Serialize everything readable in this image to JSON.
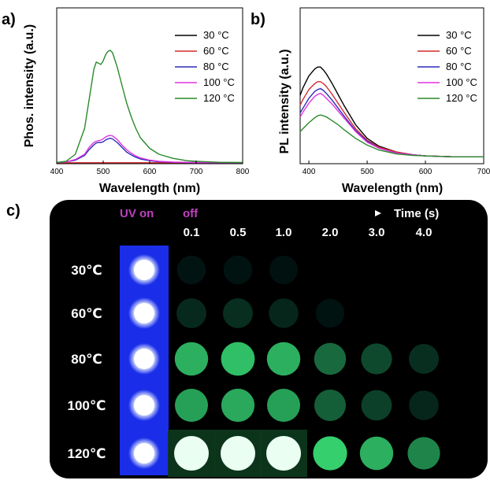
{
  "panel_labels": {
    "a": "a)",
    "b": "b)",
    "c": "c)"
  },
  "colors": {
    "30 °C": "#000000",
    "60 °C": "#d42a2a",
    "80 °C": "#2b2bb8",
    "100 °C": "#e033e0",
    "120 °C": "#2a8a2a"
  },
  "chart_data": [
    {
      "type": "line",
      "panel": "a",
      "xlabel": "Wavelength (nm)",
      "ylabel": "Phos. intensity (a.u.)",
      "xlim": [
        400,
        800
      ],
      "xticks": [
        "400",
        "500",
        "600",
        "700",
        "800"
      ],
      "yticks_visible": false,
      "legend": "top-right",
      "x": [
        400,
        420,
        440,
        460,
        470,
        480,
        485,
        490,
        495,
        500,
        505,
        510,
        515,
        520,
        530,
        540,
        550,
        560,
        570,
        580,
        600,
        620,
        650,
        680,
        700,
        750,
        800
      ],
      "series": [
        {
          "name": "30 °C",
          "values": [
            0.006,
            0.006,
            0.006,
            0.006,
            0.006,
            0.006,
            0.006,
            0.006,
            0.006,
            0.006,
            0.006,
            0.006,
            0.006,
            0.006,
            0.006,
            0.006,
            0.006,
            0.006,
            0.006,
            0.006,
            0.006,
            0.006,
            0.006,
            0.006,
            0.006,
            0.006,
            0.006
          ]
        },
        {
          "name": "60 °C",
          "values": [
            0.008,
            0.008,
            0.008,
            0.008,
            0.008,
            0.008,
            0.008,
            0.008,
            0.008,
            0.008,
            0.008,
            0.008,
            0.008,
            0.008,
            0.008,
            0.008,
            0.008,
            0.008,
            0.008,
            0.008,
            0.008,
            0.008,
            0.008,
            0.008,
            0.008,
            0.008,
            0.008
          ]
        },
        {
          "name": "80 °C",
          "values": [
            0.01,
            0.015,
            0.03,
            0.07,
            0.12,
            0.16,
            0.175,
            0.18,
            0.18,
            0.185,
            0.2,
            0.21,
            0.215,
            0.21,
            0.18,
            0.14,
            0.1,
            0.075,
            0.055,
            0.04,
            0.025,
            0.016,
            0.012,
            0.01,
            0.01,
            0.009,
            0.008
          ]
        },
        {
          "name": "100 °C",
          "values": [
            0.01,
            0.015,
            0.035,
            0.08,
            0.14,
            0.18,
            0.19,
            0.195,
            0.2,
            0.21,
            0.225,
            0.235,
            0.24,
            0.235,
            0.205,
            0.16,
            0.12,
            0.09,
            0.065,
            0.05,
            0.03,
            0.02,
            0.014,
            0.011,
            0.01,
            0.009,
            0.008
          ]
        },
        {
          "name": "120 °C",
          "values": [
            0.01,
            0.02,
            0.08,
            0.3,
            0.55,
            0.8,
            0.86,
            0.85,
            0.84,
            0.87,
            0.92,
            0.95,
            0.96,
            0.94,
            0.82,
            0.67,
            0.52,
            0.4,
            0.3,
            0.22,
            0.13,
            0.08,
            0.045,
            0.025,
            0.02,
            0.012,
            0.01
          ]
        }
      ]
    },
    {
      "type": "line",
      "panel": "b",
      "xlabel": "Wavelength (nm)",
      "ylabel": "PL intensity (a.u.)",
      "xlim": [
        385,
        700
      ],
      "xticks": [
        "400",
        "500",
        "600",
        "700"
      ],
      "yticks_visible": false,
      "legend": "top-right",
      "x": [
        385,
        390,
        400,
        410,
        415,
        420,
        425,
        430,
        440,
        450,
        460,
        480,
        500,
        520,
        550,
        580,
        600,
        650,
        700
      ],
      "series": [
        {
          "name": "30 °C",
          "values": [
            0.7,
            0.78,
            0.9,
            0.97,
            0.99,
            0.99,
            0.96,
            0.92,
            0.82,
            0.71,
            0.6,
            0.4,
            0.26,
            0.18,
            0.12,
            0.09,
            0.08,
            0.07,
            0.07
          ]
        },
        {
          "name": "60 °C",
          "values": [
            0.6,
            0.66,
            0.76,
            0.82,
            0.84,
            0.84,
            0.82,
            0.79,
            0.71,
            0.62,
            0.53,
            0.36,
            0.24,
            0.17,
            0.12,
            0.09,
            0.08,
            0.07,
            0.07
          ]
        },
        {
          "name": "80 °C",
          "values": [
            0.52,
            0.57,
            0.67,
            0.74,
            0.76,
            0.77,
            0.75,
            0.72,
            0.65,
            0.57,
            0.49,
            0.34,
            0.23,
            0.16,
            0.11,
            0.09,
            0.08,
            0.07,
            0.07
          ]
        },
        {
          "name": "100 °C",
          "values": [
            0.48,
            0.53,
            0.62,
            0.69,
            0.71,
            0.72,
            0.7,
            0.67,
            0.61,
            0.54,
            0.47,
            0.33,
            0.22,
            0.16,
            0.11,
            0.09,
            0.08,
            0.07,
            0.07
          ]
        },
        {
          "name": "120 °C",
          "values": [
            0.33,
            0.36,
            0.42,
            0.47,
            0.49,
            0.5,
            0.49,
            0.48,
            0.44,
            0.4,
            0.35,
            0.26,
            0.19,
            0.14,
            0.1,
            0.085,
            0.08,
            0.07,
            0.07
          ]
        }
      ]
    }
  ],
  "panel_c": {
    "uv_on_label": "UV on",
    "off_label": "off",
    "time_label": "Time (s)",
    "times": [
      "0.1",
      "0.5",
      "1.0",
      "2.0",
      "3.0",
      "4.0"
    ],
    "rows": [
      {
        "label": "30℃",
        "intensities": [
          0.06,
          0.05,
          0.03,
          0.0,
          0.0,
          0.0
        ]
      },
      {
        "label": "60℃",
        "intensities": [
          0.22,
          0.25,
          0.2,
          0.05,
          0.0,
          0.0
        ]
      },
      {
        "label": "80℃",
        "intensities": [
          0.8,
          0.85,
          0.8,
          0.55,
          0.4,
          0.25
        ]
      },
      {
        "label": "100℃",
        "intensities": [
          0.75,
          0.78,
          0.75,
          0.5,
          0.35,
          0.2
        ]
      },
      {
        "label": "120℃",
        "intensities": [
          1.0,
          1.0,
          1.0,
          0.9,
          0.8,
          0.65
        ]
      }
    ]
  }
}
